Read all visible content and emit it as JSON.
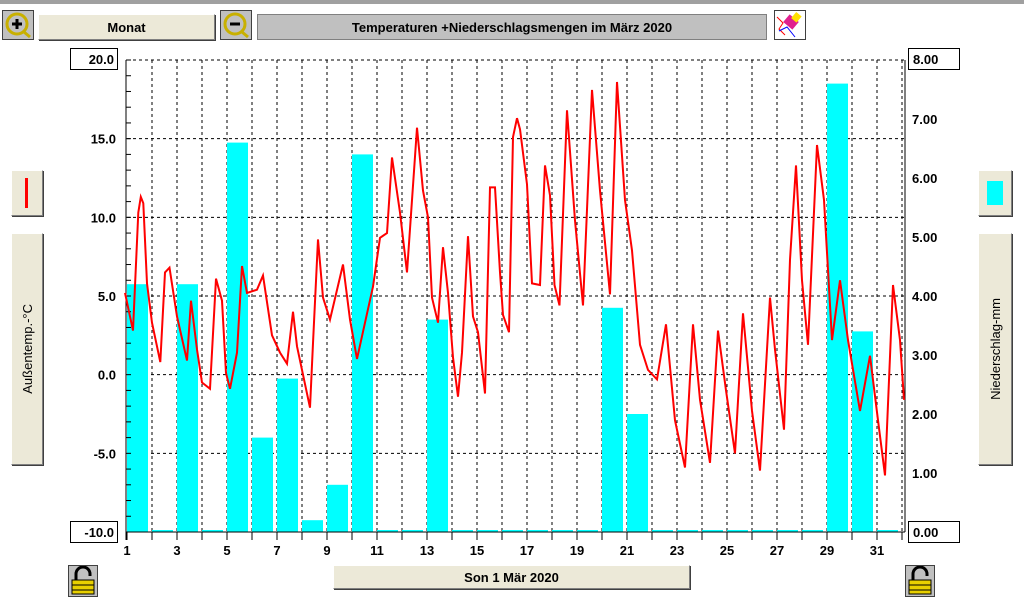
{
  "toolbar": {
    "range_label": "Monat",
    "title": "Temperaturen +Niederschlagsmengen im März 2020",
    "zoom_in_icon": "zoom-in-icon",
    "zoom_out_icon": "zoom-out-icon",
    "eraser_icon": "eraser-icon"
  },
  "left_axis": {
    "button_label": "Außentemp.-°C",
    "top_value": "20.0",
    "bottom_value": "-10.0"
  },
  "right_axis": {
    "button_label": "Niederschlag-mm",
    "top_value": "8.00",
    "bottom_value": "0.00"
  },
  "footer": {
    "date_label": "Son 1 Mär 2020"
  },
  "colors": {
    "temperature": "#ff0000",
    "precipitation": "#00ffff"
  },
  "chart_data": {
    "type": "bar+line",
    "title": "Temperaturen +Niederschlagsmengen im März 2020",
    "xlabel": "",
    "ylabel_left": "Außentemp.-°C",
    "ylabel_right": "Niederschlag-mm",
    "ylim_left": [
      -10,
      20
    ],
    "ylim_right": [
      0,
      8
    ],
    "xlim": [
      1,
      32.2
    ],
    "left_ticks": [
      "20.0",
      "15.0",
      "10.0",
      "5.0",
      "0.0",
      "-5.0",
      "-10.0"
    ],
    "right_ticks": [
      "8.00",
      "7.00",
      "6.00",
      "5.00",
      "4.00",
      "3.00",
      "2.00",
      "1.00",
      "0.00"
    ],
    "x_ticks": [
      "1",
      "3",
      "5",
      "7",
      "9",
      "11",
      "13",
      "15",
      "17",
      "19",
      "21",
      "23",
      "25",
      "27",
      "29",
      "31"
    ],
    "grid": true,
    "precipitation": {
      "name": "Niederschlag-mm",
      "days": [
        1,
        2,
        3,
        4,
        5,
        6,
        7,
        8,
        9,
        10,
        11,
        12,
        13,
        14,
        15,
        16,
        17,
        18,
        19,
        20,
        21,
        22,
        23,
        24,
        25,
        26,
        27,
        28,
        29,
        30,
        31
      ],
      "values": [
        4.2,
        0,
        4.2,
        0,
        6.6,
        1.6,
        2.6,
        0.2,
        0.8,
        6.4,
        0,
        0,
        3.6,
        0,
        0,
        0,
        0,
        0,
        0,
        3.8,
        2.0,
        0,
        0,
        0,
        0,
        0,
        0,
        0,
        7.6,
        3.4,
        0
      ]
    },
    "temperature": {
      "name": "Außentemp.-°C",
      "x": [
        0.92,
        1.24,
        1.45,
        1.55,
        1.65,
        1.8,
        2.0,
        2.33,
        2.52,
        2.7,
        3.0,
        3.4,
        3.56,
        3.8,
        4.0,
        4.32,
        4.56,
        4.8,
        4.96,
        5.12,
        5.4,
        5.6,
        5.8,
        6.2,
        6.44,
        6.8,
        7.12,
        7.4,
        7.64,
        7.8,
        8.32,
        8.44,
        8.64,
        8.84,
        9.12,
        9.64,
        9.92,
        10.2,
        10.52,
        10.84,
        11.12,
        11.4,
        11.6,
        11.92,
        12.2,
        12.6,
        12.84,
        13.04,
        13.2,
        13.44,
        13.64,
        13.84,
        14.04,
        14.24,
        14.4,
        14.64,
        14.84,
        15.04,
        15.32,
        15.52,
        15.72,
        15.92,
        16.04,
        16.28,
        16.44,
        16.6,
        16.72,
        17.0,
        17.2,
        17.52,
        17.72,
        17.92,
        18.1,
        18.3,
        18.6,
        18.92,
        19.24,
        19.6,
        19.92,
        20.32,
        20.6,
        20.92,
        21.2,
        21.52,
        21.84,
        22.2,
        22.56,
        22.92,
        23.32,
        23.64,
        23.92,
        24.32,
        24.64,
        24.96,
        25.32,
        25.64,
        26.0,
        26.32,
        26.72,
        26.92,
        27.28,
        27.52,
        27.76,
        28.0,
        28.24,
        28.6,
        28.88,
        29.2,
        29.52,
        29.84,
        30.32,
        30.72,
        31.04,
        31.32,
        31.64,
        31.92,
        32.08
      ],
      "values": [
        5.2,
        2.8,
        10.3,
        11.3,
        10.9,
        5.8,
        3.3,
        0.8,
        6.5,
        6.8,
        3.7,
        0.9,
        4.7,
        1.6,
        -0.5,
        -0.9,
        6.1,
        4.7,
        0.1,
        -0.9,
        1.4,
        6.9,
        5.2,
        5.4,
        6.3,
        2.5,
        1.4,
        0.7,
        4.0,
        1.8,
        -2.1,
        2.0,
        8.6,
        4.9,
        3.5,
        7.0,
        3.5,
        1.0,
        3.3,
        5.6,
        8.7,
        9.0,
        13.8,
        10.3,
        6.5,
        15.7,
        11.7,
        10.0,
        4.9,
        3.3,
        8.1,
        5.2,
        1.1,
        -1.4,
        1.4,
        8.8,
        3.7,
        2.7,
        -1.2,
        11.9,
        11.9,
        6.5,
        3.8,
        2.7,
        15.1,
        16.3,
        15.6,
        12.1,
        5.8,
        5.7,
        13.3,
        11.4,
        5.7,
        4.4,
        16.8,
        9.8,
        4.4,
        18.1,
        11.7,
        5.1,
        18.6,
        11.1,
        7.9,
        1.9,
        0.3,
        -0.3,
        3.2,
        -2.9,
        -5.9,
        3.2,
        -1.6,
        -5.6,
        2.8,
        -1.0,
        -5.0,
        3.9,
        -2.3,
        -6.1,
        4.9,
        1.6,
        -3.5,
        7.3,
        13.3,
        6.0,
        1.9,
        14.6,
        11.1,
        2.2,
        6.0,
        2.2,
        -2.3,
        1.2,
        -2.9,
        -6.4,
        5.7,
        2.2,
        -1.6
      ]
    }
  }
}
